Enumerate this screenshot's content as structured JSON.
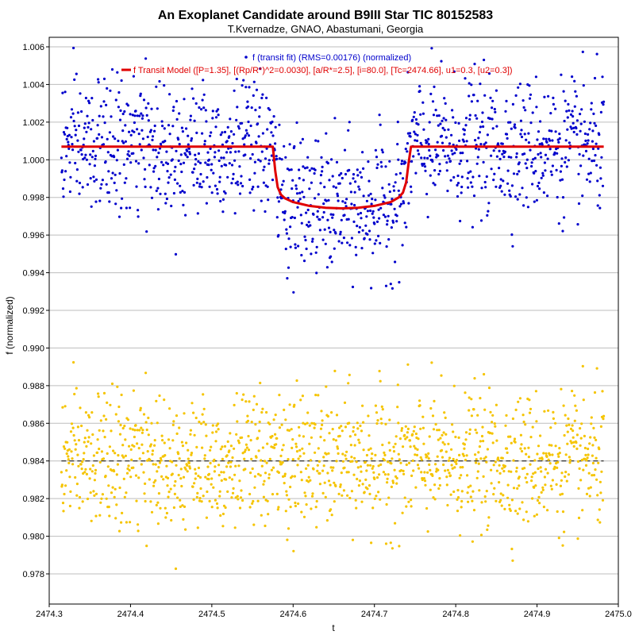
{
  "chart_data": {
    "type": "scatter",
    "title": "An Exoplanet Candidate around B9III Star TIC 80152583",
    "subtitle": "T.Kvernadze, GNAO, Abastumani, Georgia",
    "xlabel": "t",
    "ylabel": "f (normalized)",
    "xlim": [
      2474.3,
      2475.0
    ],
    "ylim": [
      0.977,
      1.0065
    ],
    "x_ticks": [
      "2474.3",
      "2474.4",
      "2474.5",
      "2474.6",
      "2474.7",
      "2474.8",
      "2474.9",
      "2475.0"
    ],
    "y_ticks": [
      "0.978",
      "0.980",
      "0.982",
      "0.984",
      "0.986",
      "0.988",
      "0.990",
      "0.992",
      "0.994",
      "0.996",
      "0.998",
      "1.000",
      "1.002",
      "1.004",
      "1.006"
    ],
    "grid": "horizontal",
    "legend_placement": "top-center",
    "colors": {
      "observations": "#0000cc",
      "model": "#e00000",
      "residuals": "#f5c400",
      "residual_baseline": "#000000"
    },
    "series": [
      {
        "name": "f (transit fit) (RMS=0.00176) (normalized)",
        "kind": "points",
        "color": "#0000cc",
        "x_range": [
          2474.315,
          2474.982
        ],
        "n_points": 1300,
        "scatter_sigma": 0.00176,
        "follows_model": true
      },
      {
        "name": "f Transit Model ([P=1.35], [(Rp/R*)^2=0.0030], [a/R*=2.5], [i=80.0], [Tc=2474.66], u1=0.3, [u2=0.3])",
        "kind": "line",
        "color": "#e00000",
        "x": [
          2474.315,
          2474.575,
          2474.578,
          2474.581,
          2474.585,
          2474.59,
          2474.6,
          2474.62,
          2474.64,
          2474.66,
          2474.68,
          2474.7,
          2474.72,
          2474.73,
          2474.735,
          2474.739,
          2474.742,
          2474.745,
          2474.982
        ],
        "y": [
          1.0007,
          1.0007,
          0.9994,
          0.99855,
          0.99815,
          0.99795,
          0.99775,
          0.99755,
          0.99745,
          0.99742,
          0.99745,
          0.99755,
          0.99775,
          0.998,
          0.99825,
          0.9988,
          0.9998,
          1.0007,
          1.0007
        ]
      },
      {
        "kind": "residual_points",
        "color": "#f5c400",
        "baseline": 0.984,
        "x_range": [
          2474.315,
          2474.982
        ],
        "n_points": 1300,
        "scatter_sigma": 0.00176
      }
    ]
  }
}
